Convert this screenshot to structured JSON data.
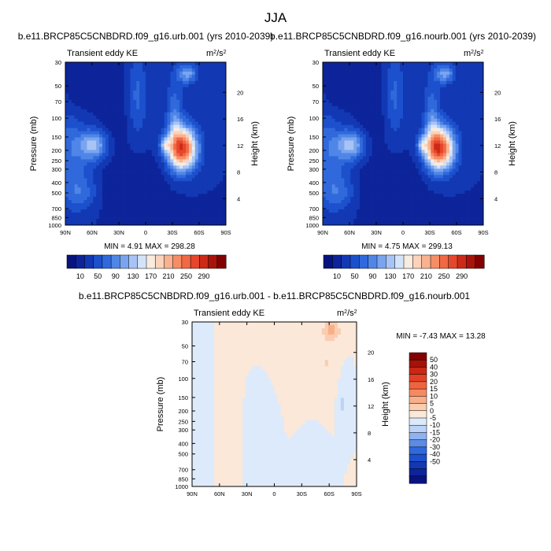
{
  "figure": {
    "title": "JJA"
  },
  "colors": {
    "seq": [
      "#08137e",
      "#0d249a",
      "#1238b4",
      "#1c50cc",
      "#3069dc",
      "#4f86e7",
      "#7aa4ef",
      "#a8c4f5",
      "#d3e3fa",
      "#f8ecdf",
      "#fbd2ba",
      "#f9b290",
      "#f68d65",
      "#f16845",
      "#e6462b",
      "#cc2a17",
      "#a91309",
      "#820100"
    ],
    "div": [
      "#08137e",
      "#0d249a",
      "#1238b4",
      "#1c50cc",
      "#3069dc",
      "#5b8be6",
      "#8fb3f0",
      "#bcd3f7",
      "#dceafb",
      "#fbe8d9",
      "#fbcdb0",
      "#f9ae88",
      "#f58a60",
      "#ef6440",
      "#e34126",
      "#c92814",
      "#a61208",
      "#820100"
    ],
    "axis": "#000000"
  },
  "chart_data": [
    {
      "type": "contour",
      "title": "b.e11.BRCP85C5CNBDRD.f09_g16.urb.001 (yrs 2010-2039)",
      "left_title": "Transient eddy KE",
      "units": "m2/s2",
      "ylabel": "Pressure (mb)",
      "ylabel_right": "Height (km)",
      "x_ticks": [
        "90N",
        "60N",
        "30N",
        "0",
        "30S",
        "60S",
        "90S"
      ],
      "y_ticks": [
        "30",
        "50",
        "70",
        "100",
        "150",
        "200",
        "250",
        "300",
        "400",
        "500",
        "700",
        "850",
        "1000"
      ],
      "y_ticks_right": [
        "20",
        "16",
        "12",
        "8",
        "4"
      ],
      "stats": "MIN =   4.91   MAX = 298.28",
      "colorbar_labels": [
        "10",
        "50",
        "90",
        "130",
        "170",
        "210",
        "250",
        "290"
      ],
      "levels": [
        10,
        30,
        50,
        70,
        90,
        110,
        130,
        150,
        170,
        190,
        210,
        230,
        250,
        270,
        290
      ],
      "max_value": 298.28,
      "min_value": 4.91
    },
    {
      "type": "contour",
      "title": "b.e11.BRCP85C5CNBDRD.f09_g16.nourb.001 (yrs 2010-2039)",
      "left_title": "Transient eddy KE",
      "units": "m2/s2",
      "ylabel": "Pressure (mb)",
      "ylabel_right": "Height (km)",
      "x_ticks": [
        "90N",
        "60N",
        "30N",
        "0",
        "30S",
        "60S",
        "90S"
      ],
      "y_ticks": [
        "30",
        "50",
        "70",
        "100",
        "150",
        "200",
        "250",
        "300",
        "400",
        "500",
        "700",
        "850",
        "1000"
      ],
      "y_ticks_right": [
        "20",
        "16",
        "12",
        "8",
        "4"
      ],
      "stats": "MIN =   4.75   MAX = 299.13",
      "colorbar_labels": [
        "10",
        "50",
        "90",
        "130",
        "170",
        "210",
        "250",
        "290"
      ],
      "levels": [
        10,
        30,
        50,
        70,
        90,
        110,
        130,
        150,
        170,
        190,
        210,
        230,
        250,
        270,
        290
      ],
      "max_value": 299.13,
      "min_value": 4.75
    },
    {
      "type": "contour",
      "title": "b.e11.BRCP85C5CNBDRD.f09_g16.urb.001 - b.e11.BRCP85C5CNBDRD.f09_g16.nourb.001",
      "left_title": "Transient eddy KE",
      "units": "m2/s2",
      "ylabel": "Pressure (mb)",
      "ylabel_right": "Height (km)",
      "x_ticks": [
        "90N",
        "60N",
        "30N",
        "0",
        "30S",
        "60S",
        "90S"
      ],
      "y_ticks": [
        "30",
        "50",
        "70",
        "100",
        "150",
        "200",
        "250",
        "300",
        "400",
        "500",
        "700",
        "850",
        "1000"
      ],
      "y_ticks_right": [
        "20",
        "16",
        "12",
        "8",
        "4"
      ],
      "stats": "MIN = -7.43  MAX = 13.28",
      "colorbar_labels": [
        "50",
        "40",
        "30",
        "20",
        "15",
        "10",
        "5",
        "0",
        "-5",
        "-10",
        "-15",
        "-20",
        "-30",
        "-40",
        "-50"
      ],
      "levels": [
        -50,
        -40,
        -30,
        -20,
        -15,
        -10,
        -5,
        0,
        5,
        10,
        15,
        20,
        30,
        40,
        50
      ],
      "max_value": 13.28,
      "min_value": -7.43
    }
  ]
}
